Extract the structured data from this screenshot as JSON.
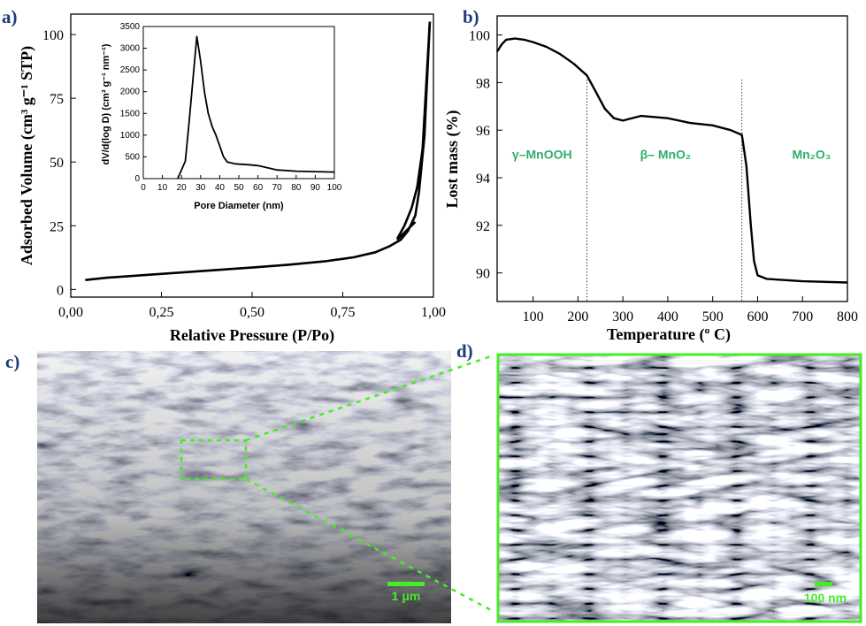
{
  "panels": {
    "a": "a)",
    "b": "b)",
    "c": "c)",
    "d": "d)"
  },
  "chart_data": [
    {
      "panel": "a",
      "type": "line",
      "xlabel": "Relative Pressure (P/Po)",
      "ylabel": "Adsorbed Volume (cm³ g⁻¹ STP)",
      "xlim": [
        0.0,
        1.0
      ],
      "ylim": [
        -3,
        108
      ],
      "xticks": [
        "0,00",
        "0,25",
        "0,50",
        "0,75",
        "1,00"
      ],
      "yticks": [
        "0",
        "25",
        "50",
        "75",
        "100"
      ],
      "series": [
        {
          "points": [
            [
              0.04,
              3.7
            ],
            [
              0.1,
              4.6
            ],
            [
              0.2,
              5.6
            ],
            [
              0.3,
              6.6
            ],
            [
              0.4,
              7.6
            ],
            [
              0.5,
              8.6
            ],
            [
              0.6,
              9.7
            ],
            [
              0.7,
              11.0
            ],
            [
              0.78,
              12.6
            ],
            [
              0.84,
              14.6
            ],
            [
              0.88,
              17.0
            ],
            [
              0.91,
              19.5
            ],
            [
              0.93,
              23.0
            ],
            [
              0.95,
              29.0
            ],
            [
              0.96,
              38.0
            ],
            [
              0.975,
              60.0
            ],
            [
              0.99,
              105.0
            ]
          ]
        },
        {
          "points": [
            [
              0.99,
              105.0
            ],
            [
              0.97,
              55.0
            ],
            [
              0.955,
              40.0
            ],
            [
              0.94,
              32.0
            ],
            [
              0.92,
              25.0
            ],
            [
              0.9,
              19.8
            ]
          ]
        },
        {
          "points": [
            [
              0.95,
              26.5
            ],
            [
              0.9,
              19.5
            ]
          ]
        }
      ]
    },
    {
      "panel": "a-inset",
      "type": "line",
      "xlabel": "Pore Diameter (nm)",
      "ylabel": "dV/d(log D) (cm³ g⁻¹ nm⁻¹)",
      "xlim": [
        0,
        100
      ],
      "ylim": [
        0,
        3500
      ],
      "xticks": [
        "0",
        "10",
        "20",
        "30",
        "40",
        "50",
        "60",
        "70",
        "80",
        "90",
        "100"
      ],
      "yticks": [
        "0",
        "500",
        "1000",
        "1500",
        "2000",
        "2500",
        "3000",
        "3500"
      ],
      "series": [
        {
          "points": [
            [
              18,
              0
            ],
            [
              20,
              200
            ],
            [
              22,
              400
            ],
            [
              24,
              1300
            ],
            [
              26,
              2300
            ],
            [
              28,
              3270
            ],
            [
              30,
              2700
            ],
            [
              32,
              2000
            ],
            [
              34,
              1500
            ],
            [
              36,
              1200
            ],
            [
              38,
              1000
            ],
            [
              40,
              750
            ],
            [
              42,
              500
            ],
            [
              44,
              380
            ],
            [
              48,
              340
            ],
            [
              55,
              320
            ],
            [
              60,
              300
            ],
            [
              70,
              200
            ],
            [
              80,
              170
            ],
            [
              90,
              160
            ],
            [
              100,
              150
            ]
          ]
        }
      ]
    },
    {
      "panel": "b",
      "type": "line",
      "xlabel": "Temperature (º C)",
      "ylabel": "Lost mass (%)",
      "xlim": [
        20,
        800
      ],
      "ylim": [
        88.8,
        100.8
      ],
      "xticks": [
        "100",
        "200",
        "300",
        "400",
        "500",
        "600",
        "700",
        "800"
      ],
      "yticks": [
        "90",
        "92",
        "94",
        "96",
        "98",
        "100"
      ],
      "series": [
        {
          "points": [
            [
              20,
              99.3
            ],
            [
              30,
              99.6
            ],
            [
              40,
              99.8
            ],
            [
              60,
              99.85
            ],
            [
              80,
              99.8
            ],
            [
              100,
              99.7
            ],
            [
              130,
              99.5
            ],
            [
              160,
              99.2
            ],
            [
              190,
              98.8
            ],
            [
              220,
              98.3
            ],
            [
              240,
              97.6
            ],
            [
              260,
              96.9
            ],
            [
              280,
              96.5
            ],
            [
              300,
              96.4
            ],
            [
              340,
              96.6
            ],
            [
              400,
              96.5
            ],
            [
              450,
              96.3
            ],
            [
              500,
              96.2
            ],
            [
              540,
              96.0
            ],
            [
              565,
              95.8
            ],
            [
              575,
              94.5
            ],
            [
              585,
              92.0
            ],
            [
              592,
              90.5
            ],
            [
              600,
              89.9
            ],
            [
              620,
              89.75
            ],
            [
              700,
              89.65
            ],
            [
              800,
              89.6
            ]
          ]
        }
      ],
      "dividers_x": [
        220,
        565
      ],
      "annotations": [
        {
          "text": "γ–MnOOH",
          "x": 120,
          "y": 94.8
        },
        {
          "text": "β– MnO₂",
          "x": 395,
          "y": 94.8
        },
        {
          "text": "Mn₂O₃",
          "x": 720,
          "y": 94.8
        }
      ]
    }
  ],
  "micrographs": {
    "c_scale": "1 μm",
    "d_scale": "100 nm"
  },
  "colors": {
    "panel_label": "#1f3a7a",
    "phase_label": "#2fae6a",
    "highlight_green": "#44ee22"
  }
}
